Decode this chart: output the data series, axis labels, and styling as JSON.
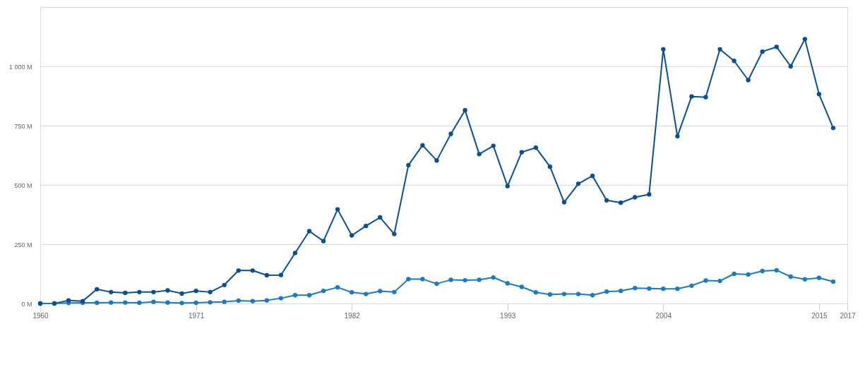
{
  "chart_data": {
    "type": "line",
    "x": [
      1960,
      1961,
      1962,
      1963,
      1964,
      1965,
      1966,
      1967,
      1968,
      1969,
      1970,
      1971,
      1972,
      1973,
      1974,
      1975,
      1976,
      1977,
      1978,
      1979,
      1980,
      1981,
      1982,
      1983,
      1984,
      1985,
      1986,
      1987,
      1988,
      1989,
      1990,
      1991,
      1992,
      1993,
      1994,
      1995,
      1996,
      1997,
      1998,
      1999,
      2000,
      2001,
      2002,
      2003,
      2004,
      2005,
      2006,
      2007,
      2008,
      2009,
      2010,
      2011,
      2012,
      2013,
      2014,
      2015,
      2016
    ],
    "series": [
      {
        "color": "#0b4f92",
        "values": [
          0,
          0,
          13,
          10,
          60,
          48,
          45,
          48,
          48,
          55,
          42,
          53,
          48,
          78,
          139,
          139,
          119,
          120,
          213,
          305,
          263,
          397,
          287,
          327,
          363,
          293,
          583,
          667,
          603,
          715,
          815,
          630,
          665,
          495,
          638,
          657,
          577,
          427,
          505,
          538,
          435,
          425,
          448,
          460,
          1072,
          705,
          873,
          870,
          1072,
          1023,
          942,
          1062,
          1082,
          1000,
          1115,
          883,
          740
        ]
      },
      {
        "color": "#1a7bc4",
        "values": [
          0,
          0,
          2,
          3,
          3,
          4,
          4,
          3,
          7,
          4,
          2,
          3,
          5,
          7,
          12,
          10,
          13,
          22,
          35,
          35,
          53,
          68,
          47,
          40,
          52,
          48,
          103,
          103,
          83,
          100,
          98,
          100,
          110,
          85,
          70,
          47,
          38,
          40,
          40,
          35,
          50,
          53,
          65,
          63,
          62,
          62,
          75,
          97,
          95,
          125,
          122,
          137,
          140,
          113,
          102,
          108,
          92
        ]
      }
    ],
    "xlim": [
      1960,
      2017
    ],
    "xticks": [
      1960,
      1971,
      1982,
      1993,
      2004,
      2015,
      2017
    ],
    "ylim": [
      0,
      1250
    ],
    "yticks": [
      {
        "value": 0,
        "label": "0 M"
      },
      {
        "value": 250,
        "label": "250 M"
      },
      {
        "value": 500,
        "label": "500 M"
      },
      {
        "value": 750,
        "label": "750 M"
      },
      {
        "value": 1000,
        "label": "1 000 M"
      },
      {
        "value": 1250,
        "label": null
      }
    ],
    "grid": "y",
    "marker": "circle",
    "line_style": "solid"
  }
}
